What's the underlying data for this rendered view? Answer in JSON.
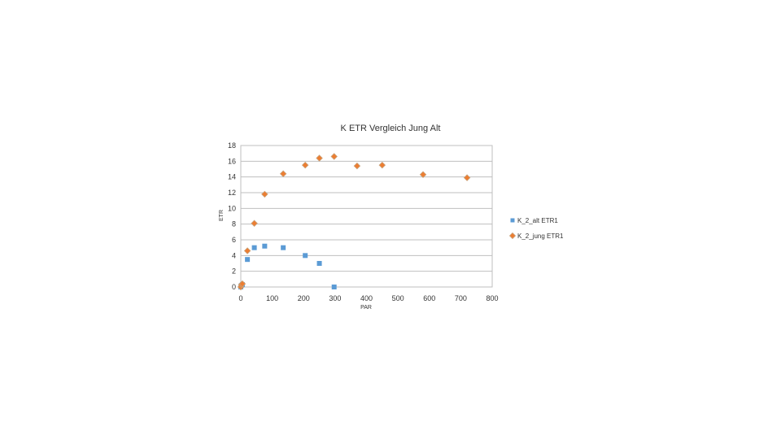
{
  "chart_data": {
    "type": "scatter",
    "title": "K ETR Vergleich Jung Alt",
    "xlabel": "PAR",
    "ylabel": "ETR",
    "xlim": [
      0,
      800
    ],
    "ylim": [
      0,
      18
    ],
    "xticks": [
      "0",
      "100",
      "200",
      "300",
      "400",
      "500",
      "600",
      "700",
      "800"
    ],
    "yticks": [
      "0",
      "2",
      "4",
      "6",
      "8",
      "10",
      "12",
      "14",
      "16",
      "18"
    ],
    "grid": "horizontal",
    "legend_position": "right",
    "series": [
      {
        "name": "K_2_alt ETR1",
        "marker": "square",
        "color": "#5b9bd5",
        "points": [
          [
            0,
            0
          ],
          [
            2,
            0.2
          ],
          [
            5,
            0.3
          ],
          [
            21,
            3.5
          ],
          [
            43,
            5.0
          ],
          [
            76,
            5.2
          ],
          [
            135,
            5.0
          ],
          [
            205,
            4.0
          ],
          [
            250,
            3.0
          ],
          [
            297,
            0
          ]
        ]
      },
      {
        "name": "K_2_jung ETR1",
        "marker": "diamond",
        "color": "#ed7d31",
        "points": [
          [
            0,
            0
          ],
          [
            2,
            0.3
          ],
          [
            5,
            0.4
          ],
          [
            21,
            4.6
          ],
          [
            43,
            8.1
          ],
          [
            76,
            11.8
          ],
          [
            135,
            14.4
          ],
          [
            205,
            15.5
          ],
          [
            250,
            16.4
          ],
          [
            297,
            16.6
          ],
          [
            370,
            15.4
          ],
          [
            450,
            15.5
          ],
          [
            580,
            14.3
          ],
          [
            720,
            13.9
          ]
        ]
      }
    ]
  }
}
